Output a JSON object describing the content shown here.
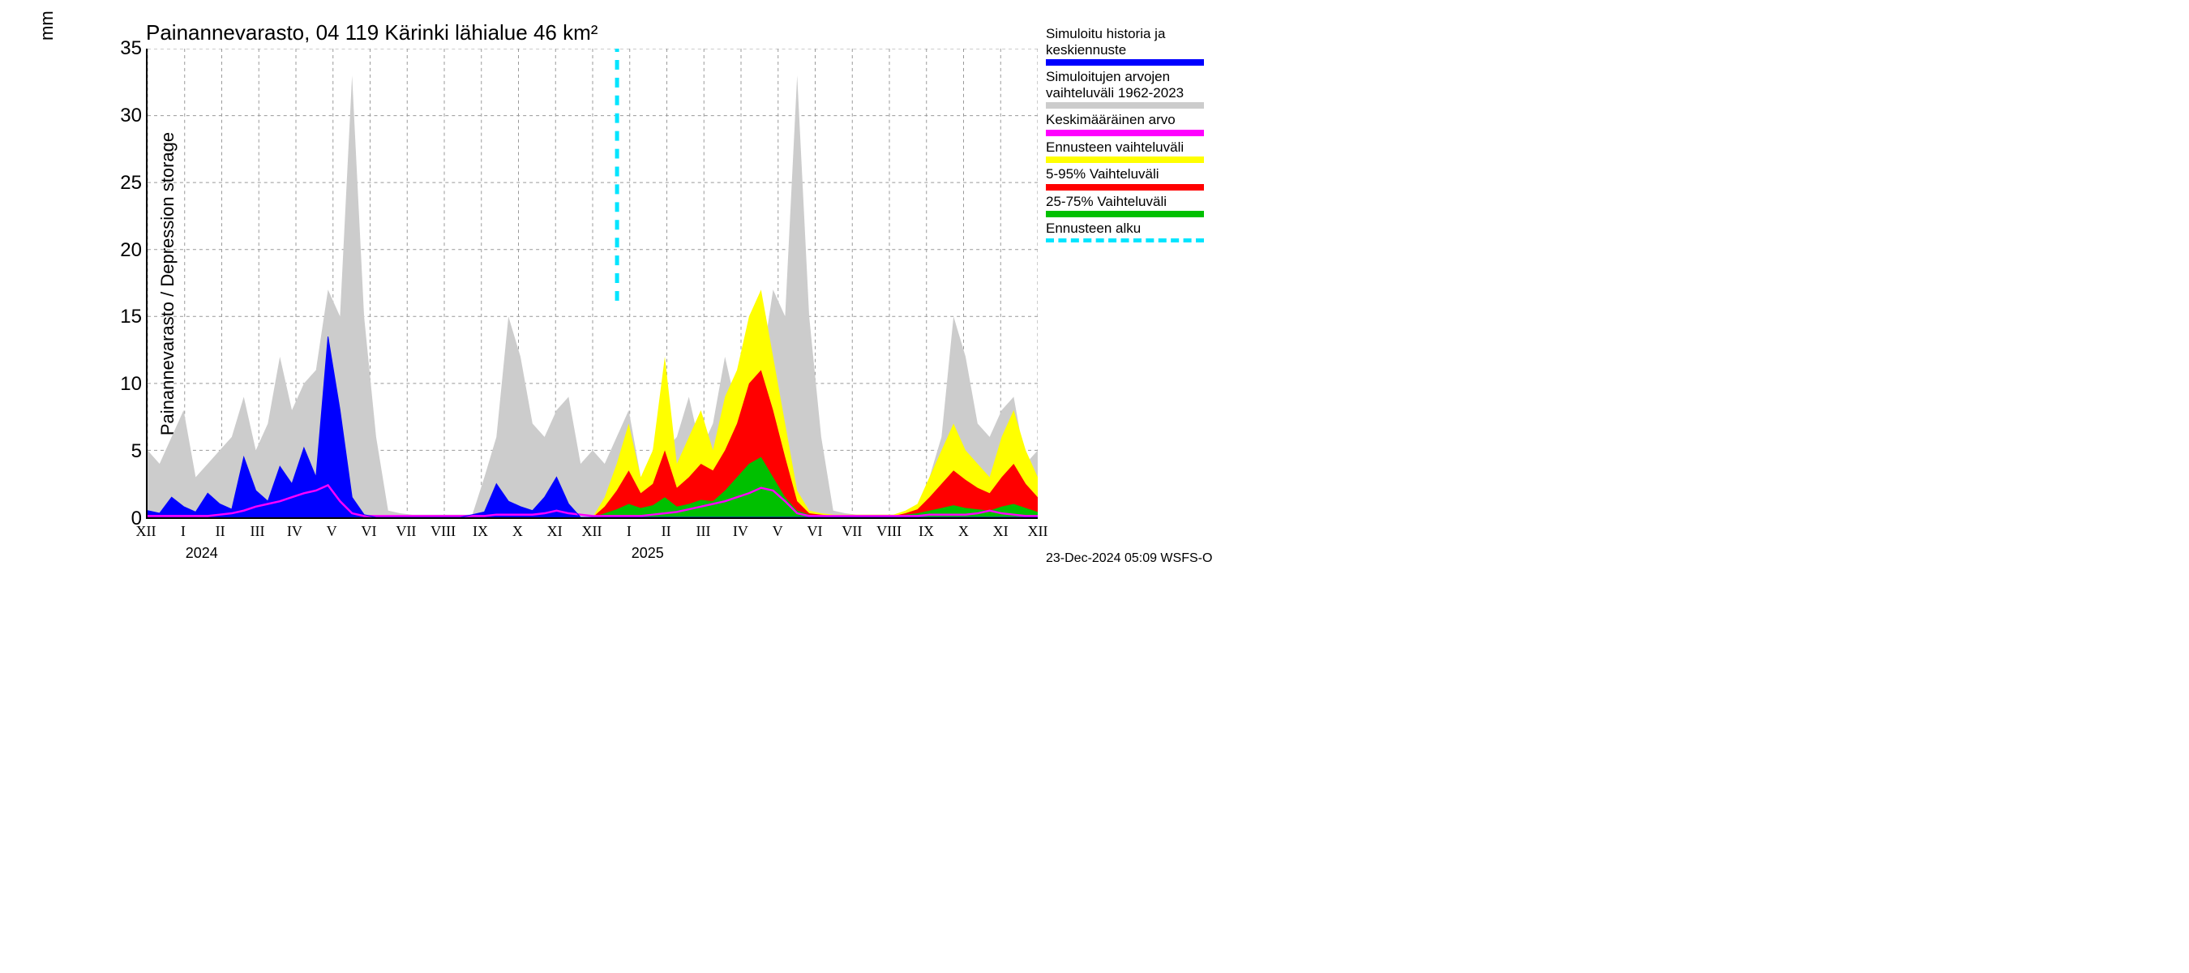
{
  "chart": {
    "type": "area-timeseries",
    "title": "Painannevarasto, 04 119 Kärinki lähialue 46 km²",
    "y_axis_label": "Painannevarasto / Depression storage",
    "y_unit": "mm",
    "ylim": [
      0,
      35
    ],
    "yticks": [
      0,
      5,
      10,
      15,
      20,
      25,
      30,
      35
    ],
    "x_months": [
      "XII",
      "I",
      "II",
      "III",
      "IV",
      "V",
      "VI",
      "VII",
      "VIII",
      "IX",
      "X",
      "XI",
      "XII",
      "I",
      "II",
      "III",
      "IV",
      "V",
      "VI",
      "VII",
      "VIII",
      "IX",
      "X",
      "XI",
      "XII"
    ],
    "x_years": [
      {
        "label": "2024",
        "at_month_index": 1.5
      },
      {
        "label": "2025",
        "at_month_index": 13.5
      }
    ],
    "n_points": 730,
    "forecast_start_index": 385,
    "colors": {
      "history_blue": "#0000ff",
      "range_grey": "#cccccc",
      "mean_magenta": "#ff00ff",
      "forecast_yellow": "#ffff00",
      "range_5_95_red": "#ff0000",
      "range_25_75_green": "#00c000",
      "forecast_start_cyan": "#00e5ff",
      "grid": "#999999",
      "axis": "#000000",
      "background": "#ffffff",
      "text": "#000000"
    },
    "typography": {
      "title_fontsize": 26,
      "axis_label_fontsize": 22,
      "tick_fontsize": 24,
      "xtick_fontsize": 18,
      "legend_fontsize": 17,
      "tick_font": "Arial",
      "xtick_font": "Times New Roman"
    },
    "grid": {
      "major_on": true,
      "style": "dashed",
      "width": 1
    },
    "grey_band": {
      "comment": "simulated historical range 1962-2023, repeats yearly; values are [low, high] per ~10-day step over 25 months",
      "low": [
        0,
        0,
        0,
        0,
        0,
        0,
        0,
        0,
        0,
        0,
        0,
        0,
        0,
        0,
        0,
        0,
        0,
        0,
        0,
        0,
        0,
        0,
        0,
        0,
        0,
        0,
        0,
        0,
        0,
        0,
        0,
        0,
        0,
        0,
        0,
        0,
        0,
        0,
        0,
        0,
        0,
        0,
        0,
        0,
        0,
        0,
        0,
        0,
        0,
        0,
        0,
        0,
        0,
        0,
        0,
        0,
        0,
        0,
        0,
        0,
        0,
        0,
        0,
        0,
        0,
        0,
        0,
        0,
        0,
        0,
        0,
        0,
        0,
        0,
        0
      ],
      "high": [
        5,
        4,
        6,
        8,
        3,
        4,
        5,
        6,
        9,
        5,
        7,
        12,
        8,
        10,
        11,
        17,
        15,
        33,
        15,
        6,
        0.5,
        0.3,
        0.2,
        0.2,
        0.2,
        0.2,
        0.2,
        0.2,
        3,
        6,
        15,
        12,
        7,
        6,
        8,
        9,
        4,
        5,
        4,
        6,
        8,
        3,
        4,
        5,
        6,
        9,
        5,
        7,
        12,
        8,
        10,
        11,
        17,
        15,
        33,
        15,
        6,
        0.5,
        0.3,
        0.2,
        0.2,
        0.2,
        0.2,
        0.2,
        0.2,
        3,
        6,
        15,
        12,
        7,
        6,
        8,
        9,
        4,
        5
      ]
    },
    "blue_history": {
      "comment": "simulated history fill (blue), 0 where not present",
      "values": [
        0.5,
        0.3,
        1.5,
        0.8,
        0.4,
        1.8,
        1.0,
        0.6,
        4.5,
        2.0,
        1.2,
        3.8,
        2.5,
        5.2,
        3.0,
        13.5,
        8.0,
        1.5,
        0.2,
        0,
        0,
        0,
        0,
        0,
        0,
        0,
        0,
        0.2,
        0.4,
        2.5,
        1.2,
        0.8,
        0.5,
        1.5,
        3.0,
        1.0,
        0,
        0,
        0,
        0,
        0,
        0,
        0,
        0,
        0,
        0,
        0,
        0,
        0,
        0,
        0,
        0,
        0,
        0,
        0,
        0,
        0,
        0,
        0,
        0,
        0,
        0,
        0,
        0,
        0,
        0,
        0,
        0,
        0,
        0,
        0,
        0,
        0,
        0,
        0
      ]
    },
    "magenta_mean": {
      "values": [
        0.1,
        0.1,
        0.1,
        0.1,
        0.1,
        0.1,
        0.2,
        0.3,
        0.5,
        0.8,
        1.0,
        1.2,
        1.5,
        1.8,
        2.0,
        2.4,
        1.2,
        0.3,
        0.1,
        0.1,
        0.1,
        0.1,
        0.1,
        0.1,
        0.1,
        0.1,
        0.1,
        0.1,
        0.1,
        0.2,
        0.2,
        0.2,
        0.2,
        0.3,
        0.5,
        0.3,
        0.2,
        0.1,
        0.1,
        0.1,
        0.1,
        0.1,
        0.2,
        0.3,
        0.4,
        0.6,
        0.8,
        1.0,
        1.2,
        1.5,
        1.8,
        2.2,
        2.0,
        1.2,
        0.3,
        0.1,
        0.1,
        0.1,
        0.1,
        0.1,
        0.1,
        0.1,
        0.1,
        0.1,
        0.1,
        0.2,
        0.2,
        0.2,
        0.2,
        0.3,
        0.5,
        0.3,
        0.2,
        0.1,
        0.1
      ]
    },
    "yellow_band": {
      "comment": "forecast full range, only after forecast_start_index",
      "low": [
        0,
        0,
        0,
        0,
        0,
        0,
        0,
        0,
        0,
        0,
        0,
        0,
        0,
        0,
        0,
        0,
        0,
        0,
        0,
        0,
        0,
        0,
        0,
        0,
        0,
        0,
        0,
        0,
        0,
        0,
        0,
        0,
        0,
        0,
        0,
        0,
        0,
        0,
        0,
        0,
        0,
        0,
        0,
        0,
        0,
        0,
        0,
        0,
        0,
        0,
        0,
        0,
        0,
        0,
        0,
        0,
        0,
        0,
        0,
        0,
        0,
        0,
        0,
        0,
        0,
        0,
        0,
        0,
        0,
        0,
        0,
        0,
        0,
        0,
        0
      ],
      "high": [
        0,
        0,
        0,
        0,
        0,
        0,
        0,
        0,
        0,
        0,
        0,
        0,
        0,
        0,
        0,
        0,
        0,
        0,
        0,
        0,
        0,
        0,
        0,
        0,
        0,
        0,
        0,
        0,
        0,
        0,
        0,
        0,
        0,
        0,
        0,
        0,
        0,
        0,
        1.5,
        4,
        7,
        3,
        5,
        12,
        4,
        6,
        8,
        5,
        9,
        11,
        15,
        17,
        12,
        7,
        2,
        0.5,
        0.3,
        0.2,
        0.2,
        0.2,
        0.2,
        0.2,
        0.2,
        0.5,
        1,
        3,
        5,
        7,
        5,
        4,
        3,
        6,
        8,
        5,
        3
      ]
    },
    "red_band": {
      "low": [
        0,
        0,
        0,
        0,
        0,
        0,
        0,
        0,
        0,
        0,
        0,
        0,
        0,
        0,
        0,
        0,
        0,
        0,
        0,
        0,
        0,
        0,
        0,
        0,
        0,
        0,
        0,
        0,
        0,
        0,
        0,
        0,
        0,
        0,
        0,
        0,
        0,
        0,
        0,
        0,
        0,
        0,
        0,
        0,
        0,
        0,
        0,
        0,
        0,
        0,
        0,
        0,
        0,
        0,
        0,
        0,
        0,
        0,
        0,
        0,
        0,
        0,
        0,
        0,
        0,
        0,
        0,
        0,
        0,
        0,
        0,
        0,
        0,
        0,
        0
      ],
      "high": [
        0,
        0,
        0,
        0,
        0,
        0,
        0,
        0,
        0,
        0,
        0,
        0,
        0,
        0,
        0,
        0,
        0,
        0,
        0,
        0,
        0,
        0,
        0,
        0,
        0,
        0,
        0,
        0,
        0,
        0,
        0,
        0,
        0,
        0,
        0,
        0,
        0,
        0,
        0.8,
        2,
        3.5,
        1.8,
        2.5,
        5,
        2.2,
        3,
        4,
        3.5,
        5,
        7,
        10,
        11,
        8,
        4.5,
        1.2,
        0.3,
        0.2,
        0.1,
        0.1,
        0.1,
        0.1,
        0.1,
        0.1,
        0.3,
        0.6,
        1.5,
        2.5,
        3.5,
        2.8,
        2.2,
        1.8,
        3,
        4,
        2.5,
        1.5
      ]
    },
    "green_band": {
      "low": [
        0,
        0,
        0,
        0,
        0,
        0,
        0,
        0,
        0,
        0,
        0,
        0,
        0,
        0,
        0,
        0,
        0,
        0,
        0,
        0,
        0,
        0,
        0,
        0,
        0,
        0,
        0,
        0,
        0,
        0,
        0,
        0,
        0,
        0,
        0,
        0,
        0,
        0,
        0,
        0,
        0,
        0,
        0,
        0,
        0,
        0,
        0,
        0,
        0,
        0,
        0,
        0,
        0,
        0,
        0,
        0,
        0,
        0,
        0,
        0,
        0,
        0,
        0,
        0,
        0,
        0,
        0,
        0,
        0,
        0,
        0,
        0,
        0,
        0,
        0
      ],
      "high": [
        0,
        0,
        0,
        0,
        0,
        0,
        0,
        0,
        0,
        0,
        0,
        0,
        0,
        0,
        0,
        0,
        0,
        0,
        0,
        0,
        0,
        0,
        0,
        0,
        0,
        0,
        0,
        0,
        0,
        0,
        0,
        0,
        0,
        0,
        0,
        0,
        0,
        0,
        0.3,
        0.6,
        1.0,
        0.7,
        0.9,
        1.5,
        0.8,
        1.0,
        1.3,
        1.2,
        2.0,
        3.0,
        4.0,
        4.5,
        3.0,
        1.5,
        0.5,
        0.2,
        0.1,
        0.1,
        0.1,
        0.1,
        0.1,
        0.1,
        0.1,
        0.2,
        0.3,
        0.5,
        0.7,
        0.9,
        0.7,
        0.6,
        0.5,
        0.8,
        1.0,
        0.7,
        0.4
      ]
    }
  },
  "legend": {
    "items": [
      {
        "label_1": "Simuloitu historia ja",
        "label_2": "keskiennuste",
        "color": "#0000ff",
        "style": "solid"
      },
      {
        "label_1": "Simuloitujen arvojen",
        "label_2": "vaihteluväli 1962-2023",
        "color": "#cccccc",
        "style": "solid"
      },
      {
        "label_1": "Keskimääräinen arvo",
        "label_2": "",
        "color": "#ff00ff",
        "style": "solid"
      },
      {
        "label_1": "Ennusteen vaihteluväli",
        "label_2": "",
        "color": "#ffff00",
        "style": "solid"
      },
      {
        "label_1": "5-95% Vaihteluväli",
        "label_2": "",
        "color": "#ff0000",
        "style": "solid"
      },
      {
        "label_1": "25-75% Vaihteluväli",
        "label_2": "",
        "color": "#00c000",
        "style": "solid"
      },
      {
        "label_1": "Ennusteen alku",
        "label_2": "",
        "color": "#00e5ff",
        "style": "dashed"
      }
    ]
  },
  "footer": "23-Dec-2024 05:09 WSFS-O"
}
